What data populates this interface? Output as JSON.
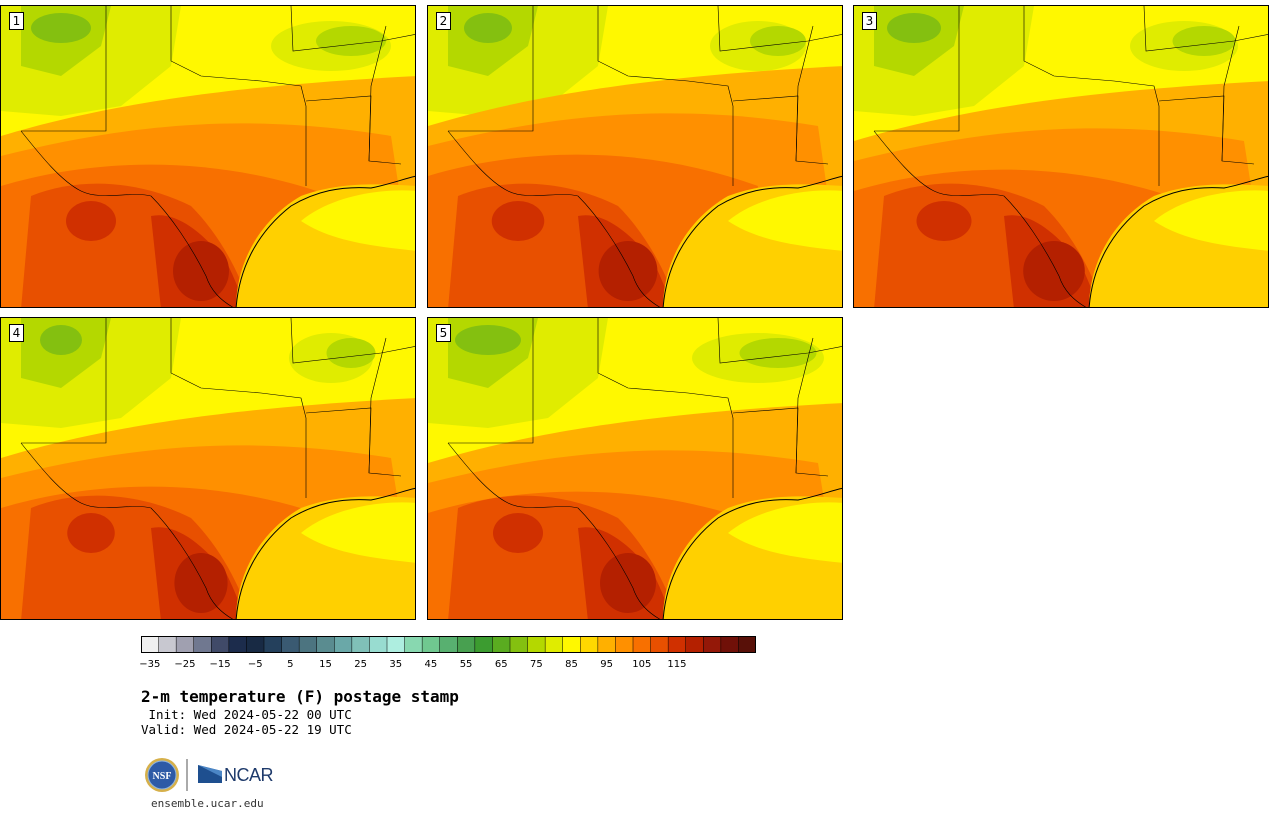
{
  "colors": {
    "scale": [
      "#f0f0f0",
      "#c8c8d0",
      "#a0a0b0",
      "#707890",
      "#404a68",
      "#1c2c4c",
      "#182a44",
      "#24405c",
      "#3a5a72",
      "#4c7480",
      "#5a8c90",
      "#6aa8a8",
      "#80c0b8",
      "#98dcd0",
      "#aeeee0",
      "#88d8b0",
      "#70c890",
      "#58b070",
      "#48a050",
      "#3c9c30",
      "#5aac20",
      "#84c010",
      "#b4d800",
      "#e0ec00",
      "#fff800",
      "#ffd800",
      "#ffb000",
      "#ff9000",
      "#f87000",
      "#e85000",
      "#d03000",
      "#b42000",
      "#941808",
      "#701008",
      "#581008"
    ]
  },
  "panels": [
    {
      "label": "1"
    },
    {
      "label": "2"
    },
    {
      "label": "3"
    },
    {
      "label": "4"
    },
    {
      "label": "5"
    }
  ],
  "colorbar": {
    "ticks": [
      "−35",
      "−25",
      "−15",
      "−5",
      "5",
      "15",
      "25",
      "35",
      "45",
      "55",
      "65",
      "75",
      "85",
      "95",
      "105",
      "115"
    ]
  },
  "title": "2-m temperature (F) postage stamp",
  "init": " Init: Wed 2024-05-22 00 UTC",
  "valid": "Valid: Wed 2024-05-22 19 UTC",
  "logos": {
    "nsf": "NSF",
    "ncar": "NCAR"
  },
  "url": "ensemble.ucar.edu"
}
